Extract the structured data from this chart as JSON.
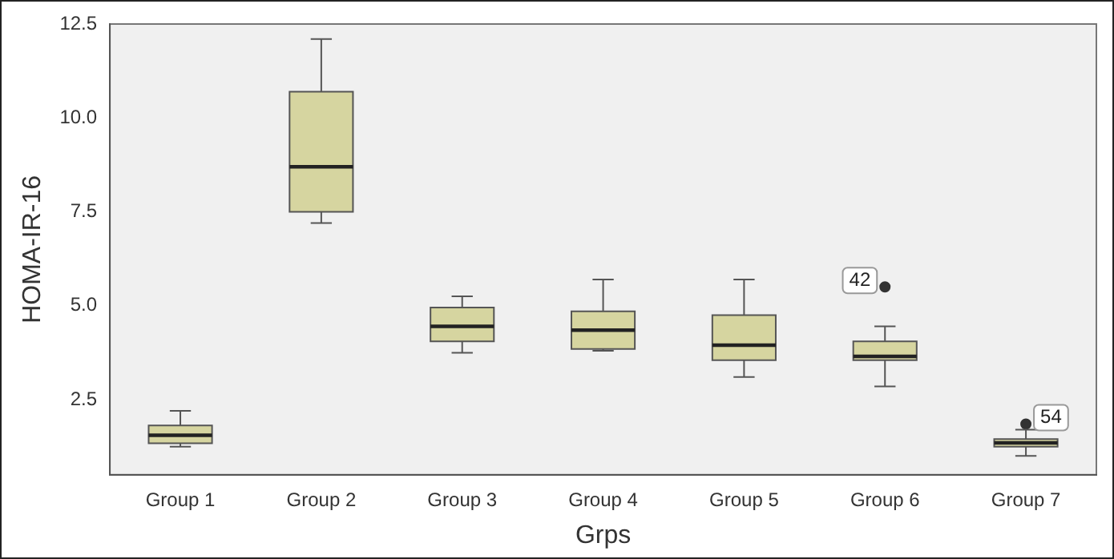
{
  "chart_data": {
    "type": "box",
    "xlabel": "Grps",
    "ylabel": "HOMA-IR-16",
    "categories": [
      "Group 1",
      "Group 2",
      "Group 3",
      "Group 4",
      "Group 5",
      "Group 6",
      "Group 7"
    ],
    "color": "#d6d5a0",
    "boxes": [
      {
        "low": 1.25,
        "q1": 1.34,
        "median": 1.55,
        "q3": 1.81,
        "high": 2.2
      },
      {
        "low": 7.2,
        "q1": 7.5,
        "median": 8.7,
        "q3": 10.7,
        "high": 12.1
      },
      {
        "low": 3.75,
        "q1": 4.05,
        "median": 4.45,
        "q3": 4.95,
        "high": 5.25
      },
      {
        "low": 3.8,
        "q1": 3.85,
        "median": 4.35,
        "q3": 4.85,
        "high": 5.7
      },
      {
        "low": 3.1,
        "q1": 3.55,
        "median": 3.95,
        "q3": 4.75,
        "high": 5.7
      },
      {
        "low": 2.85,
        "q1": 3.55,
        "median": 3.65,
        "q3": 4.05,
        "high": 4.45,
        "outliers": [
          5.5
        ]
      },
      {
        "low": 1.0,
        "q1": 1.25,
        "median": 1.35,
        "q3": 1.45,
        "high": 1.7,
        "outliers": [
          1.85
        ]
      }
    ],
    "ylim": [
      0.5,
      12.5
    ],
    "yticks": [
      2.5,
      {
        "value": 5,
        "label": "5.0"
      },
      7.5,
      {
        "value": 10,
        "label": "10.0"
      },
      12.5
    ],
    "annotations": [
      "42",
      "54"
    ],
    "grid": false,
    "legend": false
  }
}
